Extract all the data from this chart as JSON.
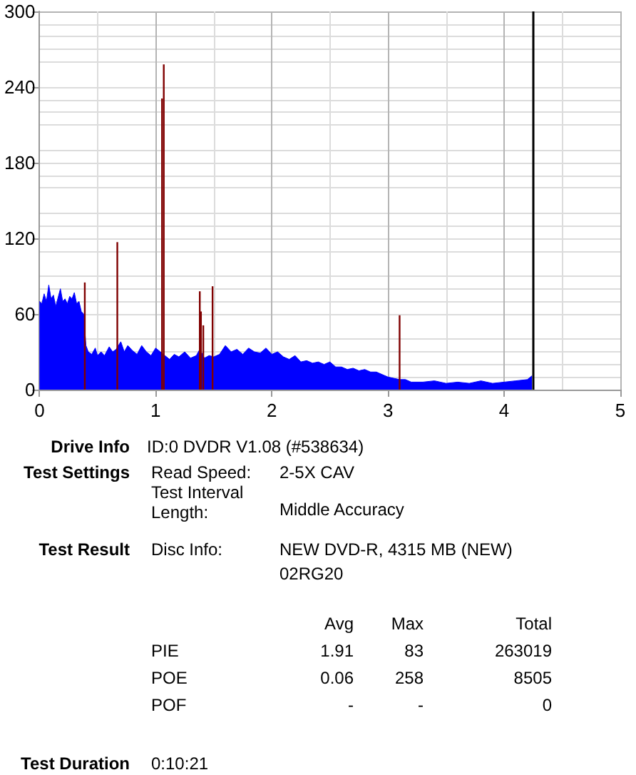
{
  "chart_data": {
    "type": "area",
    "xlim": [
      0,
      5
    ],
    "xticks": [
      0,
      1,
      2,
      3,
      4,
      5
    ],
    "ylim": [
      0,
      300
    ],
    "yticks": [
      0,
      60,
      120,
      180,
      240,
      300
    ],
    "grid": true,
    "series": [
      {
        "color": "#0000ff",
        "x": [
          0,
          0.02,
          0.04,
          0.06,
          0.08,
          0.1,
          0.12,
          0.14,
          0.16,
          0.18,
          0.2,
          0.22,
          0.24,
          0.26,
          0.28,
          0.3,
          0.32,
          0.34,
          0.36,
          0.38,
          0.4,
          0.42,
          0.45,
          0.48,
          0.5,
          0.53,
          0.56,
          0.6,
          0.63,
          0.66,
          0.7,
          0.73,
          0.76,
          0.8,
          0.84,
          0.88,
          0.92,
          0.96,
          1,
          1.04,
          1.08,
          1.12,
          1.16,
          1.2,
          1.25,
          1.3,
          1.35,
          1.38,
          1.42,
          1.46,
          1.5,
          1.55,
          1.6,
          1.65,
          1.7,
          1.75,
          1.8,
          1.85,
          1.9,
          1.95,
          2,
          2.05,
          2.1,
          2.15,
          2.2,
          2.25,
          2.3,
          2.35,
          2.4,
          2.45,
          2.5,
          2.55,
          2.6,
          2.65,
          2.7,
          2.75,
          2.8,
          2.85,
          2.9,
          2.95,
          3,
          3.05,
          3.1,
          3.15,
          3.2,
          3.3,
          3.4,
          3.5,
          3.6,
          3.7,
          3.8,
          3.9,
          4,
          4.1,
          4.2,
          4.24
        ],
        "values": [
          70,
          68,
          76,
          70,
          83,
          72,
          75,
          66,
          73,
          80,
          70,
          72,
          68,
          74,
          72,
          77,
          68,
          70,
          62,
          60,
          35,
          30,
          28,
          33,
          27,
          30,
          27,
          34,
          30,
          32,
          38,
          30,
          35,
          31,
          28,
          35,
          30,
          27,
          33,
          30,
          27,
          24,
          28,
          26,
          30,
          25,
          27,
          32,
          25,
          27,
          26,
          28,
          35,
          30,
          32,
          28,
          33,
          30,
          29,
          33,
          28,
          30,
          26,
          24,
          27,
          22,
          23,
          21,
          22,
          20,
          22,
          18,
          18,
          16,
          17,
          15,
          16,
          14,
          14,
          12,
          10,
          9,
          8,
          8,
          6,
          6,
          7,
          5,
          6,
          5,
          7,
          5,
          6,
          7,
          8,
          11
        ]
      },
      {
        "type": "bar",
        "color": "#800000",
        "x": [
          0.39,
          0.67,
          1.055,
          1.07,
          1.38,
          1.39,
          1.41,
          1.49,
          3.1
        ],
        "values": [
          85,
          117,
          231,
          258,
          78,
          62,
          51,
          82,
          59
        ]
      }
    ],
    "ref_lines": [
      {
        "axis": "x",
        "value": 4.25,
        "color": "#000000",
        "line_style": "solid"
      }
    ],
    "annotations": [
      "Drive Info",
      "ID:0 DVDR V1.08 (#538634)",
      "Test Settings",
      "Read Speed:",
      "2-5X CAV",
      "Test Interval Length:",
      "Middle Accuracy",
      "Test Result",
      "Disc Info:",
      "NEW DVD-R, 4315 MB (NEW)",
      "02RG20",
      "Avg",
      "Max",
      "Total",
      "PIE",
      "1.91",
      "83",
      "263019",
      "POE",
      "0.06",
      "258",
      "8505",
      "POF",
      "-",
      "-",
      "0",
      "Test Duration",
      "0:10:21"
    ]
  }
}
